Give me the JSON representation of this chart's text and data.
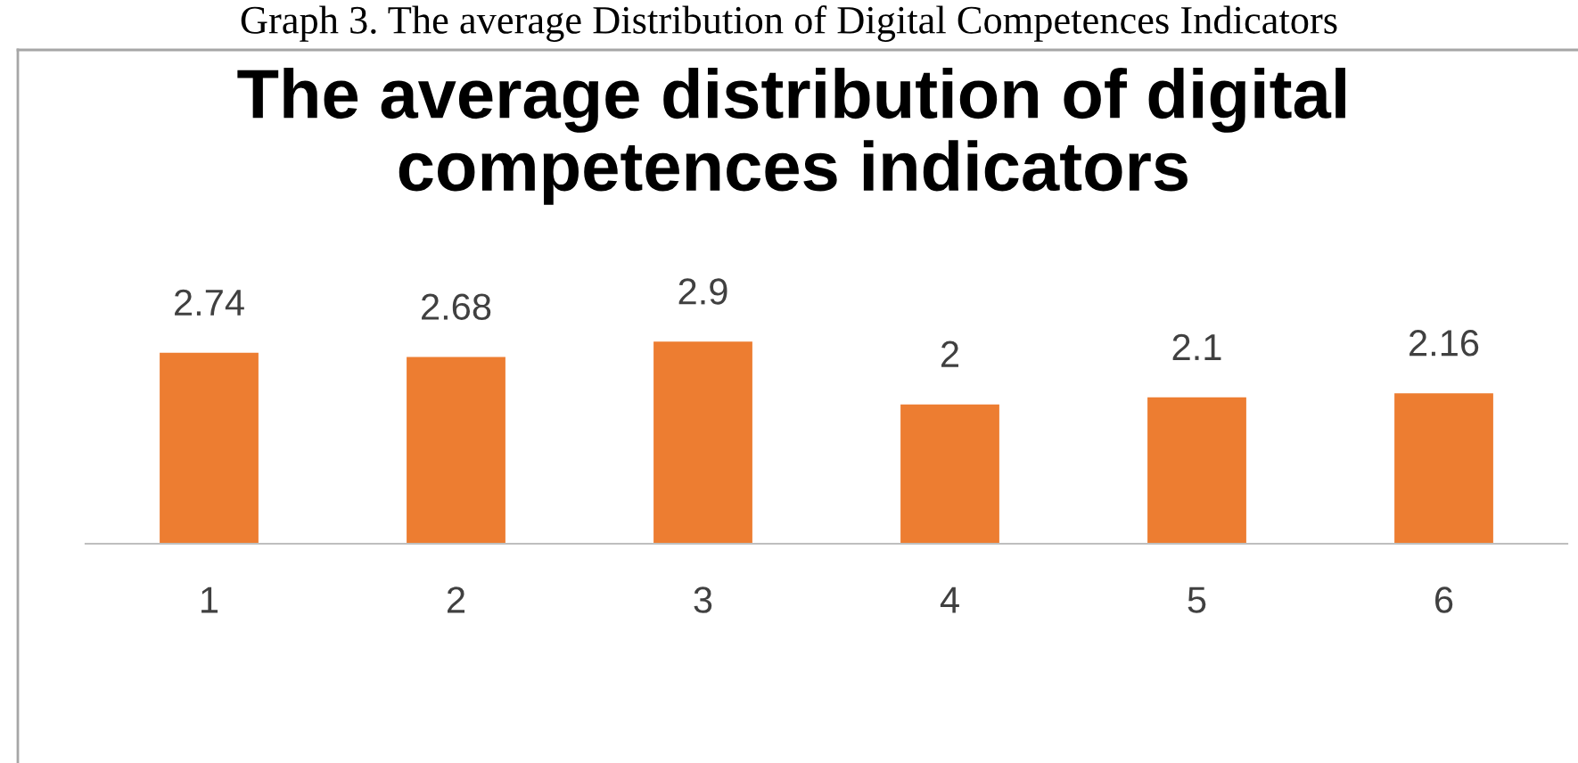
{
  "chart_data": {
    "type": "bar",
    "title": "The average distribution of digital competences indicators",
    "annotations": [
      "Graph 3. The average Distribution of Digital Competences Indicators"
    ],
    "categories": [
      "1",
      "2",
      "3",
      "4",
      "5",
      "6"
    ],
    "values": [
      2.74,
      2.68,
      2.9,
      2,
      2.1,
      2.16
    ],
    "color": "#ed7d31",
    "data_labels": true,
    "tick_labels": "x"
  }
}
